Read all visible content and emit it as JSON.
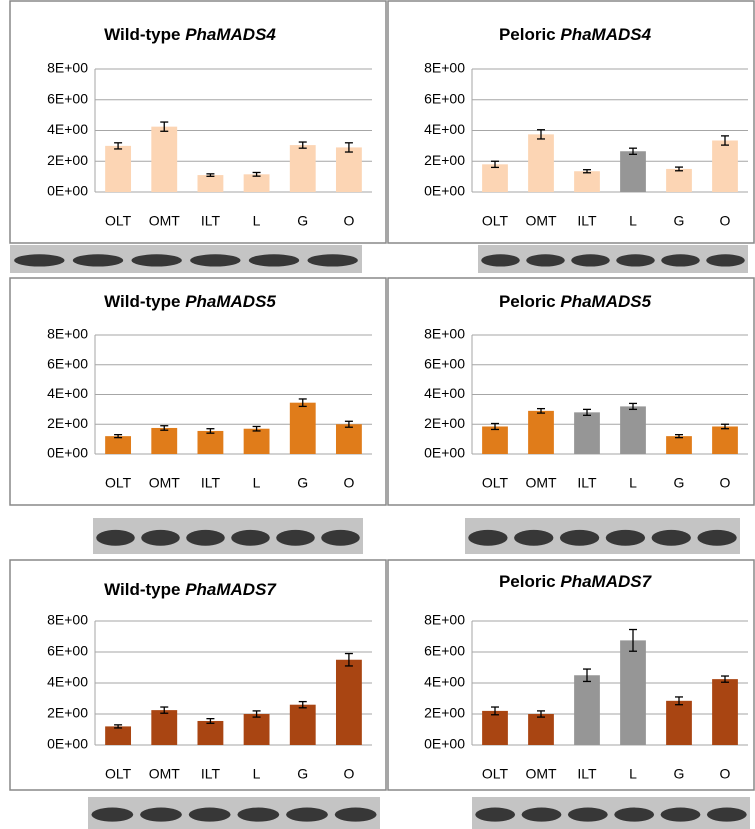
{
  "chart_data": [
    {
      "type": "bar",
      "title": "Wild-type PhaMADS4",
      "categories": [
        "OLT",
        "OMT",
        "ILT",
        "L",
        "G",
        "O"
      ],
      "values": [
        3.0,
        4.25,
        1.1,
        1.15,
        3.05,
        2.9
      ],
      "errors": [
        0.2,
        0.3,
        0.08,
        0.12,
        0.2,
        0.3
      ],
      "colors": [
        "#fcd5b4",
        "#fcd5b4",
        "#fcd5b4",
        "#fcd5b4",
        "#fcd5b4",
        "#fcd5b4"
      ],
      "ylim": [
        0,
        8
      ],
      "yticks": [
        {
          "value": 0,
          "label": "0E+00"
        },
        {
          "value": 2,
          "label": "2E+00"
        },
        {
          "value": 4,
          "label": "4E+00"
        },
        {
          "value": 6,
          "label": "6E+00"
        },
        {
          "value": 8,
          "label": "8E+00"
        }
      ],
      "grid": true
    },
    {
      "type": "bar",
      "title": "Peloric PhaMADS4",
      "categories": [
        "OLT",
        "OMT",
        "ILT",
        "L",
        "G",
        "O"
      ],
      "values": [
        1.8,
        3.75,
        1.35,
        2.65,
        1.5,
        3.35
      ],
      "errors": [
        0.2,
        0.3,
        0.1,
        0.2,
        0.12,
        0.3
      ],
      "colors": [
        "#fcd5b4",
        "#fcd5b4",
        "#fcd5b4",
        "#969696",
        "#fcd5b4",
        "#fcd5b4"
      ],
      "ylim": [
        0,
        8
      ],
      "yticks": [
        {
          "value": 0,
          "label": "0E+00"
        },
        {
          "value": 2,
          "label": "2E+00"
        },
        {
          "value": 4,
          "label": "4E+00"
        },
        {
          "value": 6,
          "label": "6E+00"
        },
        {
          "value": 8,
          "label": "8E+00"
        }
      ],
      "grid": true
    },
    {
      "type": "bar",
      "title": "Wild-type PhaMADS5",
      "categories": [
        "OLT",
        "OMT",
        "ILT",
        "L",
        "G",
        "O"
      ],
      "values": [
        1.2,
        1.75,
        1.55,
        1.7,
        3.45,
        2.0
      ],
      "errors": [
        0.1,
        0.15,
        0.15,
        0.15,
        0.25,
        0.2
      ],
      "colors": [
        "#e07c1a",
        "#e07c1a",
        "#e07c1a",
        "#e07c1a",
        "#e07c1a",
        "#e07c1a"
      ],
      "ylim": [
        0,
        8
      ],
      "yticks": [
        {
          "value": 0,
          "label": "0E+00"
        },
        {
          "value": 2,
          "label": "2E+00"
        },
        {
          "value": 4,
          "label": "4E+00"
        },
        {
          "value": 6,
          "label": "6E+00"
        },
        {
          "value": 8,
          "label": "8E+00"
        }
      ],
      "grid": true
    },
    {
      "type": "bar",
      "title": "Peloric PhaMADS5",
      "categories": [
        "OLT",
        "OMT",
        "ILT",
        "L",
        "G",
        "O"
      ],
      "values": [
        1.85,
        2.9,
        2.8,
        3.2,
        1.2,
        1.85
      ],
      "errors": [
        0.2,
        0.15,
        0.2,
        0.2,
        0.1,
        0.15
      ],
      "colors": [
        "#e07c1a",
        "#e07c1a",
        "#969696",
        "#969696",
        "#e07c1a",
        "#e07c1a"
      ],
      "ylim": [
        0,
        8
      ],
      "yticks": [
        {
          "value": 0,
          "label": "0E+00"
        },
        {
          "value": 2,
          "label": "2E+00"
        },
        {
          "value": 4,
          "label": "4E+00"
        },
        {
          "value": 6,
          "label": "6E+00"
        },
        {
          "value": 8,
          "label": "8E+00"
        }
      ],
      "grid": true
    },
    {
      "type": "bar",
      "title": "Wild-type PhaMADS7",
      "categories": [
        "OLT",
        "OMT",
        "ILT",
        "L",
        "G",
        "O"
      ],
      "values": [
        1.2,
        2.25,
        1.55,
        2.0,
        2.6,
        5.5
      ],
      "errors": [
        0.1,
        0.2,
        0.15,
        0.2,
        0.2,
        0.4
      ],
      "colors": [
        "#a94512",
        "#a94512",
        "#a94512",
        "#a94512",
        "#a94512",
        "#a94512"
      ],
      "ylim": [
        0,
        8
      ],
      "yticks": [
        {
          "value": 0,
          "label": "0E+00"
        },
        {
          "value": 2,
          "label": "2E+00"
        },
        {
          "value": 4,
          "label": "4E+00"
        },
        {
          "value": 6,
          "label": "6E+00"
        },
        {
          "value": 8,
          "label": "8E+00"
        }
      ],
      "grid": true
    },
    {
      "type": "bar",
      "title": "Peloric PhaMADS7",
      "categories": [
        "OLT",
        "OMT",
        "ILT",
        "L",
        "G",
        "O"
      ],
      "values": [
        2.2,
        2.0,
        4.5,
        6.75,
        2.85,
        4.25
      ],
      "errors": [
        0.25,
        0.2,
        0.4,
        0.7,
        0.25,
        0.2
      ],
      "colors": [
        "#a94512",
        "#a94512",
        "#969696",
        "#969696",
        "#a94512",
        "#a94512"
      ],
      "ylim": [
        0,
        8
      ],
      "yticks": [
        {
          "value": 0,
          "label": "0E+00"
        },
        {
          "value": 2,
          "label": "2E+00"
        },
        {
          "value": 4,
          "label": "4E+00"
        },
        {
          "value": 6,
          "label": "6E+00"
        },
        {
          "value": 8,
          "label": "8E+00"
        }
      ],
      "grid": true
    }
  ]
}
